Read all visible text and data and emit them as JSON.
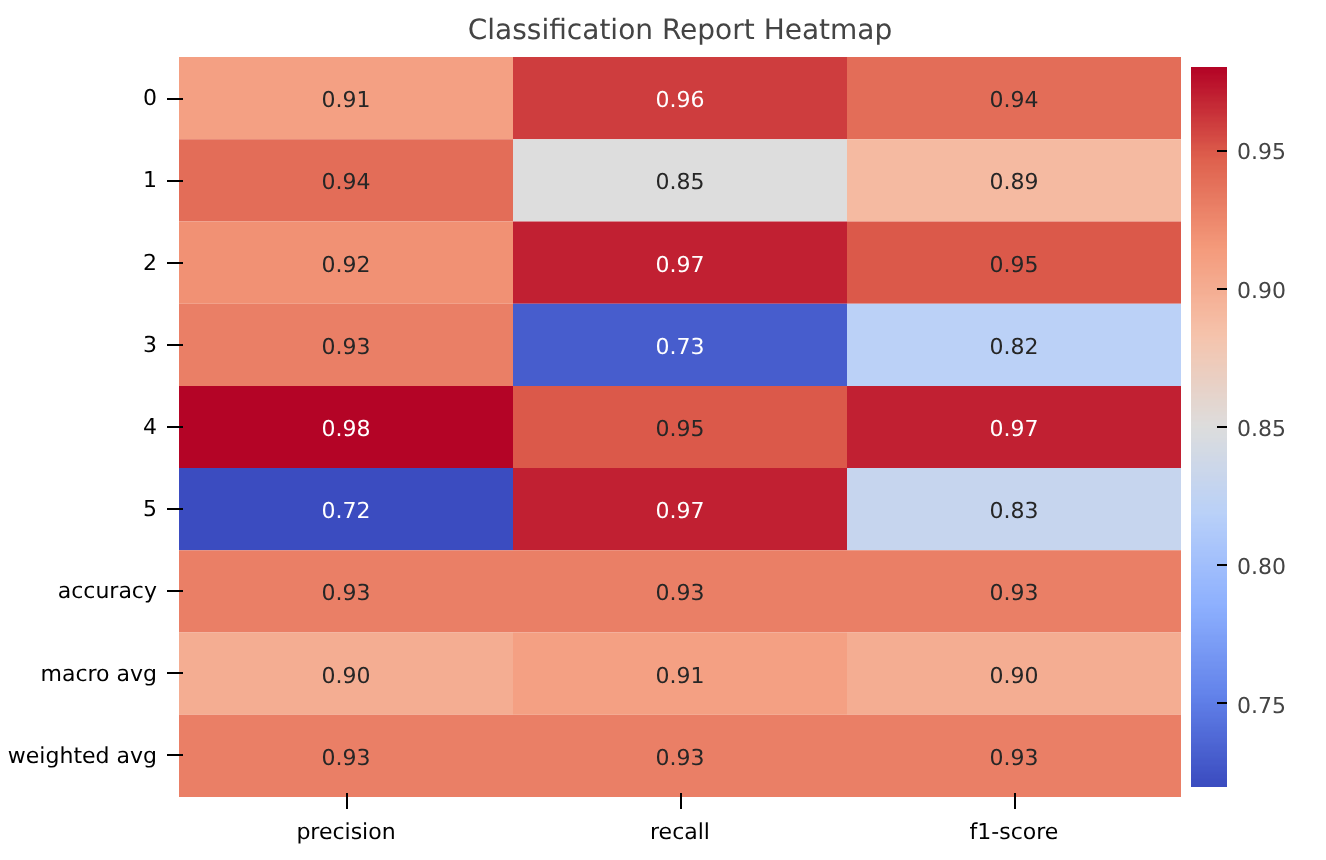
{
  "chart_data": {
    "type": "heatmap",
    "title": "Classification Report Heatmap",
    "categories": [
      "precision",
      "recall",
      "f1-score"
    ],
    "y_categories": [
      "0",
      "1",
      "2",
      "3",
      "4",
      "5",
      "accuracy",
      "macro avg",
      "weighted avg"
    ],
    "cells": [
      [
        0.91,
        0.96,
        0.94
      ],
      [
        0.94,
        0.85,
        0.89
      ],
      [
        0.92,
        0.97,
        0.95
      ],
      [
        0.93,
        0.73,
        0.82
      ],
      [
        0.98,
        0.95,
        0.97
      ],
      [
        0.72,
        0.97,
        0.83
      ],
      [
        0.93,
        0.93,
        0.93
      ],
      [
        0.9,
        0.91,
        0.9
      ],
      [
        0.93,
        0.93,
        0.93
      ]
    ],
    "cell_labels": [
      [
        "0.91",
        "0.96",
        "0.94"
      ],
      [
        "0.94",
        "0.85",
        "0.89"
      ],
      [
        "0.92",
        "0.97",
        "0.95"
      ],
      [
        "0.93",
        "0.73",
        "0.82"
      ],
      [
        "0.98",
        "0.95",
        "0.97"
      ],
      [
        "0.72",
        "0.97",
        "0.83"
      ],
      [
        "0.93",
        "0.93",
        "0.93"
      ],
      [
        "0.90",
        "0.91",
        "0.90"
      ],
      [
        "0.93",
        "0.93",
        "0.93"
      ]
    ],
    "data_labels": true,
    "clim": [
      0.72,
      0.98
    ],
    "cticks": [
      0.75,
      {
        "value": 0.8,
        "label": "0.80"
      },
      0.85,
      {
        "value": 0.9,
        "label": "0.90"
      },
      0.95
    ]
  }
}
